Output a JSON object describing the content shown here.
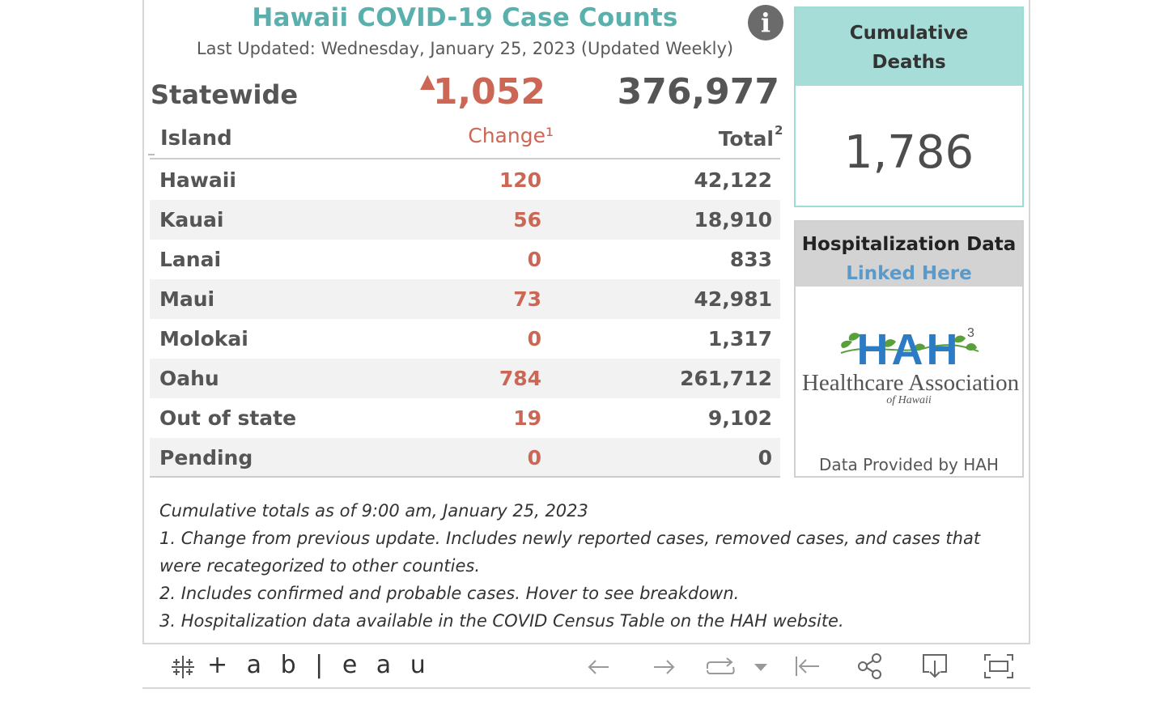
{
  "header": {
    "title": "Hawaii COVID-19 Case Counts",
    "subtitle": "Last Updated: Wednesday, January 25, 2023 (Updated Weekly)",
    "info_icon": "info-icon"
  },
  "statewide": {
    "label": "Statewide",
    "change": "1,052",
    "change_trend": "▲",
    "total": "376,977"
  },
  "table": {
    "columns": {
      "island": "Island",
      "change": "Change¹",
      "total": "Total",
      "total_sup": "2"
    },
    "rows": [
      {
        "name": "Hawaii",
        "change": "120",
        "total": "42,122"
      },
      {
        "name": "Kauai",
        "change": "56",
        "total": "18,910"
      },
      {
        "name": "Lanai",
        "change": "0",
        "total": "833"
      },
      {
        "name": "Maui",
        "change": "73",
        "total": "42,981"
      },
      {
        "name": "Molokai",
        "change": "0",
        "total": "1,317"
      },
      {
        "name": "Oahu",
        "change": "784",
        "total": "261,712"
      },
      {
        "name": "Out of state",
        "change": "19",
        "total": "9,102"
      },
      {
        "name": "Pending",
        "change": "0",
        "total": "0"
      }
    ]
  },
  "deaths": {
    "title_line1": "Cumulative",
    "title_line2": "Deaths",
    "value": "1,786"
  },
  "hospitalization": {
    "title": "Hospitalization Data",
    "link": "Linked Here",
    "logo_letters": "HAH",
    "logo_sup": "3",
    "logo_name": "Healthcare Association",
    "logo_sub": "of Hawaii",
    "provided_by": "Data Provided by HAH"
  },
  "notes": [
    "Cumulative totals as of 9:00 am, January 25, 2023",
    "1. Change from previous update. Includes newly reported cases, removed cases, and cases that were recategorized to other counties.",
    "2. Includes confirmed and probable cases. Hover to see breakdown.",
    "3. Hospitalization data available in the COVID Census Table on the HAH website."
  ],
  "toolbar": {
    "brand": "+ a b | e a u",
    "icons": [
      "tableau-logo-icon",
      "undo-icon",
      "redo-icon",
      "revert-icon",
      "revert-dropdown-icon",
      "reset-icon",
      "share-icon",
      "download-icon",
      "fullscreen-icon"
    ]
  },
  "colors": {
    "title": "#5ab0ac",
    "change": "#cc6655",
    "deaths_header": "#a7ddd8",
    "link": "#5b9ac8",
    "logo_blue": "#2b7cc4",
    "logo_green": "#5aa03a"
  }
}
